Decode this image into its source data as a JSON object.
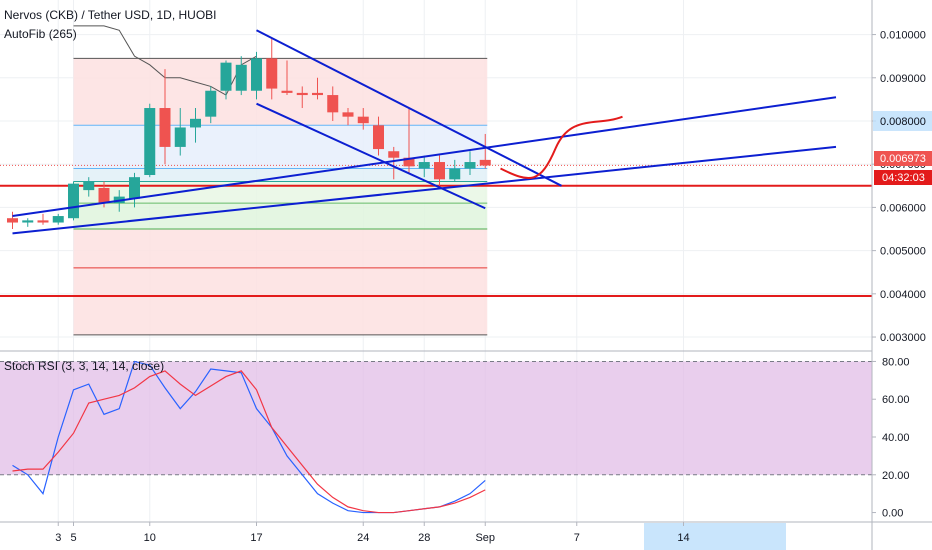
{
  "header": {
    "symbol_title": "Nervos (CKB) / Tether USD, 1D, HUOBI",
    "indicator_label": "AutoFib (265)",
    "rsi_label": "Stoch RSI (3, 3, 14, 14, close)"
  },
  "price_badges": {
    "last_price": "0.006973",
    "countdown": "04:32:03"
  },
  "colors": {
    "up": "#26a69a",
    "down": "#ef5350",
    "trendline": "#0c1fd1",
    "horizontal": "#e31b1b",
    "rsi_k": "#2962ff",
    "rsi_d": "#f23645",
    "rsi_band": "#e1bee7"
  },
  "chart_data": [
    {
      "type": "candlestick",
      "title": "Nervos (CKB) / Tether USD, 1D, HUOBI",
      "ylim": [
        0.0027,
        0.0108
      ],
      "y_ticks": [
        "0.003000",
        "0.004000",
        "0.005000",
        "0.006000",
        "0.007000",
        "0.008000",
        "0.009000",
        "0.010000"
      ],
      "x_ticks": [
        {
          "day": 4,
          "label": "3"
        },
        {
          "day": 5,
          "label": "5"
        },
        {
          "day": 10,
          "label": "10"
        },
        {
          "day": 17,
          "label": "17"
        },
        {
          "day": 24,
          "label": "24"
        },
        {
          "day": 28,
          "label": "28"
        },
        {
          "day": 32,
          "label": "Sep"
        },
        {
          "day": 38,
          "label": "7"
        },
        {
          "day": 45,
          "label": "14"
        }
      ],
      "candles": [
        {
          "day": 1,
          "o": 0.00575,
          "h": 0.0059,
          "l": 0.0055,
          "c": 0.00565
        },
        {
          "day": 2,
          "o": 0.00565,
          "h": 0.00575,
          "l": 0.00555,
          "c": 0.0057
        },
        {
          "day": 3,
          "o": 0.0057,
          "h": 0.00585,
          "l": 0.0056,
          "c": 0.00565
        },
        {
          "day": 4,
          "o": 0.00565,
          "h": 0.00585,
          "l": 0.0056,
          "c": 0.0058
        },
        {
          "day": 5,
          "o": 0.00575,
          "h": 0.0066,
          "l": 0.0057,
          "c": 0.00655
        },
        {
          "day": 6,
          "o": 0.0064,
          "h": 0.0067,
          "l": 0.00625,
          "c": 0.0066
        },
        {
          "day": 7,
          "o": 0.00645,
          "h": 0.0066,
          "l": 0.006,
          "c": 0.0061
        },
        {
          "day": 8,
          "o": 0.0061,
          "h": 0.0064,
          "l": 0.0059,
          "c": 0.00625
        },
        {
          "day": 9,
          "o": 0.0062,
          "h": 0.0068,
          "l": 0.006,
          "c": 0.0067
        },
        {
          "day": 10,
          "o": 0.00675,
          "h": 0.0084,
          "l": 0.0067,
          "c": 0.0083
        },
        {
          "day": 11,
          "o": 0.0083,
          "h": 0.0092,
          "l": 0.007,
          "c": 0.0074
        },
        {
          "day": 12,
          "o": 0.0074,
          "h": 0.0083,
          "l": 0.0072,
          "c": 0.00785
        },
        {
          "day": 13,
          "o": 0.00785,
          "h": 0.0083,
          "l": 0.0075,
          "c": 0.00805
        },
        {
          "day": 14,
          "o": 0.0081,
          "h": 0.0088,
          "l": 0.00795,
          "c": 0.0087
        },
        {
          "day": 15,
          "o": 0.0087,
          "h": 0.0094,
          "l": 0.0085,
          "c": 0.00935
        },
        {
          "day": 16,
          "o": 0.0087,
          "h": 0.0095,
          "l": 0.0086,
          "c": 0.0093
        },
        {
          "day": 17,
          "o": 0.0087,
          "h": 0.0096,
          "l": 0.0085,
          "c": 0.00945
        },
        {
          "day": 18,
          "o": 0.00945,
          "h": 0.0099,
          "l": 0.0085,
          "c": 0.00875
        },
        {
          "day": 19,
          "o": 0.0087,
          "h": 0.0094,
          "l": 0.0086,
          "c": 0.00865
        },
        {
          "day": 20,
          "o": 0.00865,
          "h": 0.0088,
          "l": 0.0083,
          "c": 0.0086
        },
        {
          "day": 21,
          "o": 0.00865,
          "h": 0.009,
          "l": 0.0085,
          "c": 0.0086
        },
        {
          "day": 22,
          "o": 0.0086,
          "h": 0.0088,
          "l": 0.008,
          "c": 0.0082
        },
        {
          "day": 23,
          "o": 0.0082,
          "h": 0.0083,
          "l": 0.0079,
          "c": 0.0081
        },
        {
          "day": 24,
          "o": 0.0081,
          "h": 0.0083,
          "l": 0.0078,
          "c": 0.00795
        },
        {
          "day": 25,
          "o": 0.0079,
          "h": 0.0081,
          "l": 0.0072,
          "c": 0.00735
        },
        {
          "day": 26,
          "o": 0.0073,
          "h": 0.0074,
          "l": 0.00665,
          "c": 0.00715
        },
        {
          "day": 27,
          "o": 0.00715,
          "h": 0.0083,
          "l": 0.0068,
          "c": 0.00695
        },
        {
          "day": 28,
          "o": 0.0069,
          "h": 0.0072,
          "l": 0.0067,
          "c": 0.00705
        },
        {
          "day": 29,
          "o": 0.00705,
          "h": 0.0072,
          "l": 0.0065,
          "c": 0.00665
        },
        {
          "day": 30,
          "o": 0.00665,
          "h": 0.0071,
          "l": 0.0066,
          "c": 0.0069
        },
        {
          "day": 31,
          "o": 0.0069,
          "h": 0.0073,
          "l": 0.00675,
          "c": 0.00705
        },
        {
          "day": 32,
          "o": 0.0071,
          "h": 0.0077,
          "l": 0.0069,
          "c": 0.00697
        }
      ],
      "fib_bands": {
        "start_day": 5,
        "end_day": 32,
        "levels": [
          0.00305,
          0.0046,
          0.0055,
          0.0061,
          0.0066,
          0.0069,
          0.0079,
          0.00945
        ],
        "fills": [
          "#fde0e0",
          "#fde0e0",
          "#dff5dd",
          "#e8f7e4",
          "#e0f0f7",
          "#e6eefb",
          "#fde0e0"
        ],
        "line_colors": [
          "#555555",
          "#e53935",
          "#4caf50",
          "#66bb6a",
          "#26a69a",
          "#64b5f6",
          "#64b5f6",
          "#555555"
        ]
      },
      "envelope": {
        "upper_days": [
          5,
          6,
          7,
          8,
          9,
          10,
          11,
          12,
          13,
          14,
          15,
          16,
          17
        ],
        "upper": [
          0.0102,
          0.0102,
          0.0102,
          0.0101,
          0.0095,
          0.0093,
          0.009,
          0.009,
          0.0089,
          0.0088,
          0.0086,
          0.0093,
          0.0095
        ]
      },
      "trendlines": [
        {
          "name": "channel-upper",
          "from": [
            17,
            0.0101
          ],
          "to": [
            37,
            0.0065
          ],
          "color": "#0c1fd1"
        },
        {
          "name": "channel-lower",
          "from": [
            17,
            0.0084
          ],
          "to": [
            32,
            0.00598
          ],
          "color": "#0c1fd1"
        },
        {
          "name": "wedge-upper",
          "from": [
            1,
            0.0058
          ],
          "to": [
            55,
            0.00855
          ],
          "color": "#0c1fd1"
        },
        {
          "name": "wedge-lower",
          "from": [
            1,
            0.0054
          ],
          "to": [
            55,
            0.0074
          ],
          "color": "#0c1fd1"
        },
        {
          "name": "projection",
          "from": [
            33,
            0.0069
          ],
          "to": [
            41,
            0.0081
          ],
          "color": "#e31b1b"
        }
      ],
      "horizontal_lines": [
        {
          "value": 0.0065,
          "color": "#e31b1b"
        },
        {
          "value": 0.00395,
          "color": "#e31b1b"
        }
      ],
      "last_price": 0.006973
    },
    {
      "type": "line",
      "title": "Stoch RSI (3, 3, 14, 14, close)",
      "ylim": [
        -5,
        85
      ],
      "y_ticks": [
        "0.00",
        "20.00",
        "40.00",
        "60.00",
        "80.00"
      ],
      "bands": [
        20,
        80
      ],
      "series": [
        {
          "name": "K",
          "color": "#2962ff",
          "days": [
            1,
            2,
            3,
            4,
            5,
            6,
            7,
            8,
            9,
            10,
            11,
            12,
            13,
            14,
            15,
            16,
            17,
            18,
            19,
            20,
            21,
            22,
            23,
            24,
            25,
            26,
            27,
            28,
            29,
            30,
            31,
            32
          ],
          "values": [
            25,
            20,
            10,
            40,
            65,
            68,
            52,
            55,
            80,
            78,
            66,
            55,
            64,
            76,
            75,
            74,
            55,
            45,
            30,
            20,
            10,
            5,
            1,
            0,
            0,
            0,
            1,
            2,
            3,
            6,
            10,
            17
          ]
        },
        {
          "name": "D",
          "color": "#f23645",
          "days": [
            1,
            2,
            3,
            4,
            5,
            6,
            7,
            8,
            9,
            10,
            11,
            12,
            13,
            14,
            15,
            16,
            17,
            18,
            19,
            20,
            21,
            22,
            23,
            24,
            25,
            26,
            27,
            28,
            29,
            30,
            31,
            32
          ],
          "values": [
            22,
            23,
            23,
            32,
            42,
            58,
            60,
            62,
            66,
            72,
            75,
            68,
            62,
            67,
            72,
            75,
            65,
            45,
            35,
            25,
            15,
            8,
            3,
            1,
            0,
            0,
            1,
            2,
            3,
            5,
            8,
            12
          ]
        }
      ]
    }
  ]
}
